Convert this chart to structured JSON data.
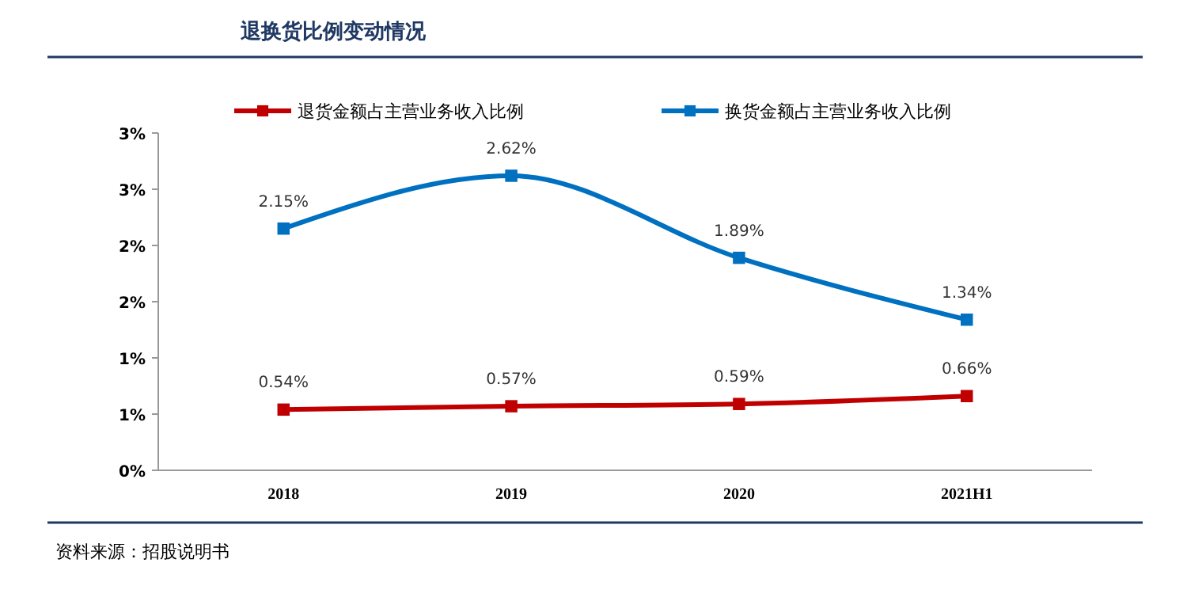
{
  "chart_data": {
    "type": "line",
    "title": "退换货比例变动情况",
    "categories": [
      "2018",
      "2019",
      "2020",
      "2021H1"
    ],
    "series": [
      {
        "name": "退货金额占主营业务收入比例",
        "color": "#c00000",
        "values": [
          0.54,
          0.57,
          0.59,
          0.66
        ],
        "value_labels": [
          "0.54%",
          "0.57%",
          "0.59%",
          "0.66%"
        ]
      },
      {
        "name": "换货金额占主营业务收入比例",
        "color": "#0070c0",
        "values": [
          2.15,
          2.62,
          1.89,
          1.34
        ],
        "value_labels": [
          "2.15%",
          "2.62%",
          "1.89%",
          "1.34%"
        ]
      }
    ],
    "ylim": [
      0,
      3
    ],
    "yticks": [
      {
        "value": 0,
        "label": "0%"
      },
      {
        "value": 0.5,
        "label": "1%"
      },
      {
        "value": 1,
        "label": "1%"
      },
      {
        "value": 1.5,
        "label": "2%"
      },
      {
        "value": 2,
        "label": "2%"
      },
      {
        "value": 2.5,
        "label": "3%"
      },
      {
        "value": 3,
        "label": "3%"
      }
    ],
    "marker": "square",
    "legend": "top",
    "grid": false,
    "annotations": [
      "资料来源：招股说明书"
    ]
  }
}
